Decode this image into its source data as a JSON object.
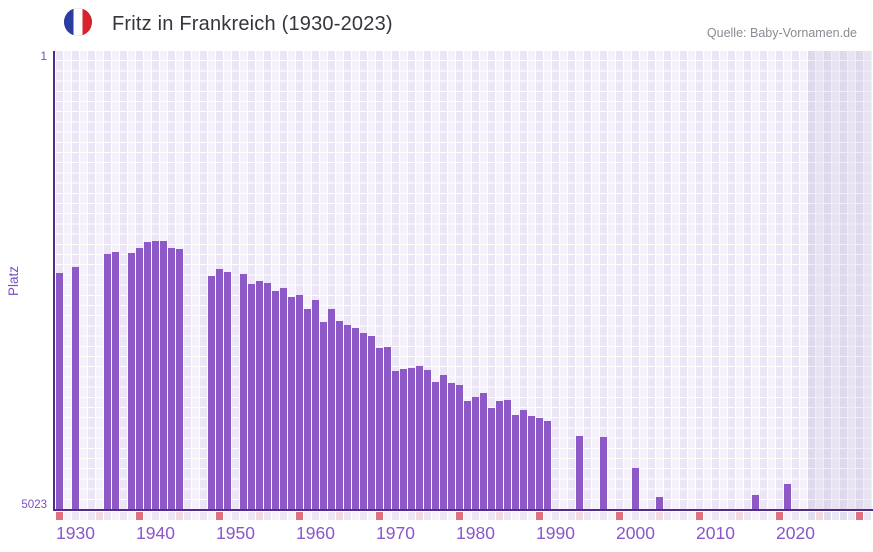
{
  "header": {
    "title": "Fritz in Frankreich (1930-2023)",
    "source": "Quelle: Baby-Vornamen.de",
    "flag_icon": "france-flag-icon"
  },
  "chart_data": {
    "type": "bar",
    "title": "Fritz in Frankreich (1930-2023)",
    "ylabel": "Platz",
    "y_axis": {
      "top_tick_label": "1",
      "bottom_tick_label": "5023",
      "min": 1,
      "max": 5023,
      "inverted": true,
      "note": "rank 1 at top, bars rise from bottom; taller bar = better rank"
    },
    "x_axis": {
      "first_year": 1930,
      "last_grid_year": 2031,
      "last_data_year": 2023,
      "decade_labels": [
        "1930",
        "1940",
        "1950",
        "1960",
        "1970",
        "1980",
        "1990",
        "2000",
        "2010",
        "2020"
      ],
      "future_band_start": 2024
    },
    "legend": "none",
    "grid": true,
    "points": [
      {
        "year": 1930,
        "rank": 2430
      },
      {
        "year": 1932,
        "rank": 2365
      },
      {
        "year": 1936,
        "rank": 2225
      },
      {
        "year": 1937,
        "rank": 2195
      },
      {
        "year": 1939,
        "rank": 2210
      },
      {
        "year": 1940,
        "rank": 2160
      },
      {
        "year": 1941,
        "rank": 2095
      },
      {
        "year": 1942,
        "rank": 2080
      },
      {
        "year": 1943,
        "rank": 2080
      },
      {
        "year": 1944,
        "rank": 2160
      },
      {
        "year": 1945,
        "rank": 2170
      },
      {
        "year": 1949,
        "rank": 2460
      },
      {
        "year": 1950,
        "rank": 2390
      },
      {
        "year": 1951,
        "rank": 2420
      },
      {
        "year": 1953,
        "rank": 2440
      },
      {
        "year": 1954,
        "rank": 2545
      },
      {
        "year": 1955,
        "rank": 2520
      },
      {
        "year": 1956,
        "rank": 2535
      },
      {
        "year": 1957,
        "rank": 2630
      },
      {
        "year": 1958,
        "rank": 2590
      },
      {
        "year": 1959,
        "rank": 2690
      },
      {
        "year": 1960,
        "rank": 2665
      },
      {
        "year": 1961,
        "rank": 2820
      },
      {
        "year": 1962,
        "rank": 2730
      },
      {
        "year": 1963,
        "rank": 2965
      },
      {
        "year": 1964,
        "rank": 2825
      },
      {
        "year": 1965,
        "rank": 2960
      },
      {
        "year": 1966,
        "rank": 3000
      },
      {
        "year": 1967,
        "rank": 3035
      },
      {
        "year": 1968,
        "rank": 3090
      },
      {
        "year": 1969,
        "rank": 3120
      },
      {
        "year": 1970,
        "rank": 3250
      },
      {
        "year": 1971,
        "rank": 3240
      },
      {
        "year": 1972,
        "rank": 3500
      },
      {
        "year": 1973,
        "rank": 3485
      },
      {
        "year": 1974,
        "rank": 3470
      },
      {
        "year": 1975,
        "rank": 3445
      },
      {
        "year": 1976,
        "rank": 3490
      },
      {
        "year": 1977,
        "rank": 3620
      },
      {
        "year": 1978,
        "rank": 3545
      },
      {
        "year": 1979,
        "rank": 3630
      },
      {
        "year": 1980,
        "rank": 3650
      },
      {
        "year": 1981,
        "rank": 3830
      },
      {
        "year": 1982,
        "rank": 3785
      },
      {
        "year": 1983,
        "rank": 3745
      },
      {
        "year": 1984,
        "rank": 3910
      },
      {
        "year": 1985,
        "rank": 3830
      },
      {
        "year": 1986,
        "rank": 3820
      },
      {
        "year": 1987,
        "rank": 3985
      },
      {
        "year": 1988,
        "rank": 3930
      },
      {
        "year": 1989,
        "rank": 3995
      },
      {
        "year": 1990,
        "rank": 4020
      },
      {
        "year": 1991,
        "rank": 4050
      },
      {
        "year": 1995,
        "rank": 4210
      },
      {
        "year": 1998,
        "rank": 4220
      },
      {
        "year": 2002,
        "rank": 4565
      },
      {
        "year": 2005,
        "rank": 4875
      },
      {
        "year": 2017,
        "rank": 4860
      },
      {
        "year": 2021,
        "rank": 4740
      }
    ],
    "colors": {
      "bar": "#8c59c6",
      "axis_line": "#4f2d84",
      "year_label": "#8a56c8",
      "y_label": "#7c4ec0",
      "tick_decade": "#e0717c",
      "tick_half_decade": "#f2d9e0",
      "tick_plain_dark": "#ece5f6",
      "tick_plain_light": "#f6f2fc",
      "tick_band_dark": "#e2ddee",
      "tick_band_light": "#eae6f3",
      "title_text": "#35353f",
      "source_text": "#8b8b93",
      "flag_blue": "#2b3da0",
      "flag_red": "#d8232f"
    }
  }
}
